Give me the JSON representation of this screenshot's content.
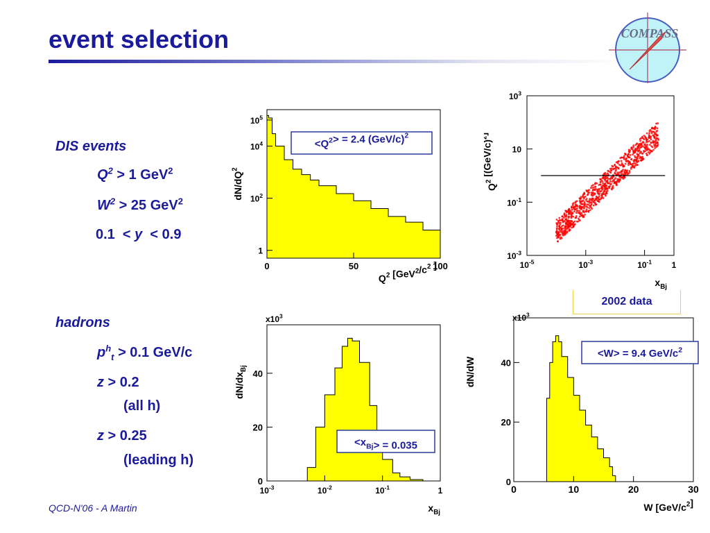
{
  "slide": {
    "title": "event selection",
    "footer": "QCD-N'06  -  A Martin",
    "logo_text": "COMPASS"
  },
  "cuts": {
    "dis_heading": "DIS events",
    "q2_var": "Q",
    "q2_exp": "2",
    "q2_rest": " > 1 GeV",
    "q2_unit_exp": "2",
    "w2_var": "W",
    "w2_exp": "2",
    "w2_rest": " > 25 GeV",
    "w2_unit_exp": "2",
    "y_low": "0.1  <",
    "y_var": "y",
    "y_high": "< 0.9",
    "hadrons_heading": "hadrons",
    "pt_var": "p",
    "pt_sup": "h",
    "pt_sub": "t",
    "pt_rest": " > 0.1 GeV/c",
    "z1_var": "z",
    "z1_rest": " > 0.2",
    "z1_note": "(all h)",
    "z2_var": "z",
    "z2_rest": " > 0.25",
    "z2_note": "(leading h)"
  },
  "data_label": "2002 data",
  "colors": {
    "title": "#1a1a9c",
    "hist_fill": "#ffff00",
    "scatter": "#ff0000",
    "box_border": "#2a3a9a"
  },
  "chart_data": [
    {
      "type": "area",
      "id": "q2",
      "ylabel": "dN/dQ",
      "ylabel_sup": "2",
      "xlabel": "Q",
      "xlabel_sup": "2",
      "xlabel_rest": " [GeV",
      "xlabel_sup2": "2",
      "xlabel_rest2": "/c",
      "xlabel_sup3": "2",
      "xlabel_rest3": " ]",
      "y_scale": "log",
      "ylim": [
        0.5,
        250000
      ],
      "xlim": [
        0,
        100
      ],
      "xticks": [
        "0",
        "50",
        "100"
      ],
      "yticks": [
        {
          "base": "1",
          "exp": ""
        },
        {
          "base": "10",
          "exp": "2"
        },
        {
          "base": "10",
          "exp": "4"
        },
        {
          "base": "10",
          "exp": "5"
        }
      ],
      "annotation": "<Q²> = 2.4 (GeV/c)²",
      "x": [
        0,
        1,
        3,
        5,
        10,
        15,
        20,
        25,
        30,
        40,
        50,
        60,
        70,
        80,
        90,
        100
      ],
      "values": [
        150000,
        120000,
        30000,
        10000,
        3000,
        1300,
        800,
        500,
        300,
        150,
        80,
        40,
        20,
        12,
        6,
        3
      ]
    },
    {
      "type": "scatter",
      "id": "q2_vs_xbj",
      "ylabel": "Q",
      "ylabel_sup": "2",
      "ylabel_rest": " [(GeV/c)",
      "ylabel_sup2": "2",
      "ylabel_rest2": "]",
      "xlabel": "x",
      "xlabel_sub": "Bj",
      "x_scale": "log",
      "y_scale": "log",
      "xlim": [
        1e-05,
        1
      ],
      "ylim": [
        0.001,
        1000
      ],
      "xticks": [
        {
          "base": "10",
          "exp": "-5"
        },
        {
          "base": "10",
          "exp": "-3"
        },
        {
          "base": "10",
          "exp": "-1"
        },
        {
          "base": "1",
          "exp": ""
        }
      ],
      "yticks": [
        {
          "base": "10",
          "exp": "-3"
        },
        {
          "base": "10",
          "exp": "-1"
        },
        {
          "base": "10",
          "exp": ""
        },
        {
          "base": "10",
          "exp": "3"
        }
      ],
      "cut_line_y": 1,
      "band": {
        "x_start": 0.0001,
        "x_end": 0.3,
        "q2_start": 0.008,
        "q2_end": 40
      }
    },
    {
      "type": "area",
      "id": "xbj",
      "ylabel": "dN/dx",
      "ylabel_sub": "Bj",
      "xlabel": "x",
      "xlabel_sub": "Bj",
      "x_scale": "log",
      "xlim": [
        0.001,
        1
      ],
      "ylim": [
        0,
        58
      ],
      "y_multiplier": "x10",
      "y_multiplier_exp": "3",
      "xticks": [
        {
          "base": "10",
          "exp": "-3"
        },
        {
          "base": "10",
          "exp": "-2"
        },
        {
          "base": "10",
          "exp": "-1"
        },
        {
          "base": "1",
          "exp": ""
        }
      ],
      "yticks": [
        "0",
        "20",
        "40"
      ],
      "annotation": "<xBj> = 0.035",
      "x": [
        0.004,
        0.005,
        0.007,
        0.01,
        0.015,
        0.02,
        0.025,
        0.03,
        0.04,
        0.06,
        0.08,
        0.1,
        0.15,
        0.2,
        0.3,
        0.5
      ],
      "values": [
        0,
        5,
        20,
        32,
        42,
        50,
        53,
        52,
        44,
        28,
        15,
        8,
        3,
        1.5,
        0.5,
        0
      ]
    },
    {
      "type": "area",
      "id": "w",
      "ylabel": "dN/dW",
      "xlabel": "W [GeV/c",
      "xlabel_sup": "2",
      "xlabel_rest": "]",
      "xlim": [
        0,
        30
      ],
      "ylim": [
        0,
        55
      ],
      "y_multiplier": "x10",
      "y_multiplier_exp": "3",
      "xticks": [
        "0",
        "10",
        "20",
        "30"
      ],
      "yticks": [
        "0",
        "20",
        "40"
      ],
      "annotation": "<W> = 9.4 GeV/c²",
      "x": [
        5,
        5.5,
        6,
        6.5,
        7,
        7.5,
        8,
        9,
        10,
        11,
        12,
        13,
        14,
        15,
        16,
        16.5,
        17
      ],
      "values": [
        0,
        28,
        40,
        47,
        49,
        47,
        42,
        35,
        29,
        24,
        19,
        15,
        11,
        8,
        5,
        2,
        0
      ]
    }
  ]
}
